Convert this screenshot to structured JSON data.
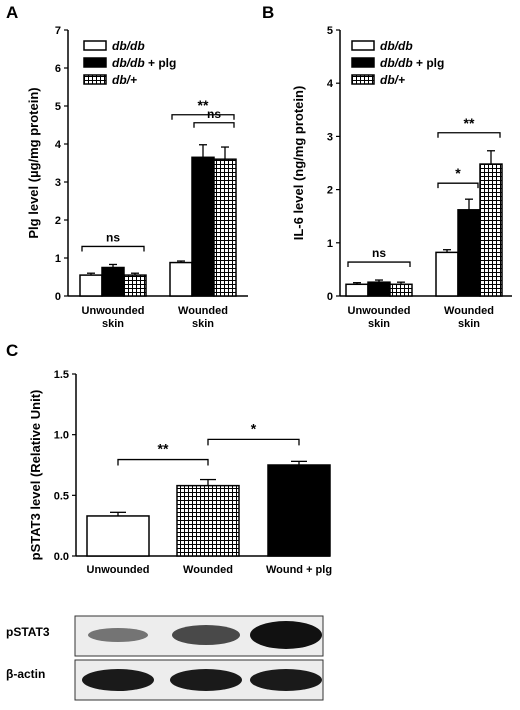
{
  "panels": {
    "a": "A",
    "b": "B",
    "c": "C"
  },
  "colors": {
    "dbdb": "#ffffff",
    "dbdb_plg": "#000000",
    "dbplus": "grid-pattern"
  },
  "blot": {
    "pstat3_label": "pSTAT3",
    "actin_label": "β-actin"
  },
  "chart_data": [
    {
      "type": "bar",
      "panel": "A",
      "ylabel": "Plg level (µg/mg protein)",
      "ylim": [
        0,
        7
      ],
      "yticks": [
        "0",
        "1",
        "2",
        "3",
        "4",
        "5",
        "6",
        "7"
      ],
      "categories": [
        "Unwounded skin",
        "Wounded skin"
      ],
      "legend": {
        "position": "top-left",
        "entries": [
          "db/db",
          "db/db + plg",
          "db/+"
        ]
      },
      "series": [
        {
          "name": "db/db",
          "values": [
            0.55,
            0.88
          ],
          "errors": [
            0.05,
            0.04
          ],
          "fill": "white"
        },
        {
          "name": "db/db + plg",
          "values": [
            0.75,
            3.65
          ],
          "errors": [
            0.08,
            0.33
          ],
          "fill": "black"
        },
        {
          "name": "db/+",
          "values": [
            0.55,
            3.6
          ],
          "errors": [
            0.05,
            0.32
          ],
          "fill": "grid"
        }
      ],
      "annotations": [
        {
          "text": "ns",
          "group": 0,
          "from": 0,
          "to": 2
        },
        {
          "text": "**",
          "group": 1,
          "from": 0,
          "to": 2
        },
        {
          "text": "ns",
          "group": 1,
          "from": 1,
          "to": 2
        }
      ]
    },
    {
      "type": "bar",
      "panel": "B",
      "ylabel": "IL-6 level (ng/mg protein)",
      "ylim": [
        0,
        5
      ],
      "yticks": [
        "0",
        "1",
        "2",
        "3",
        "4",
        "5"
      ],
      "categories": [
        "Unwounded skin",
        "Wounded skin"
      ],
      "legend": {
        "position": "top-left",
        "entries": [
          "db/db",
          "db/db + plg",
          "db/+"
        ]
      },
      "series": [
        {
          "name": "db/db",
          "values": [
            0.22,
            0.82
          ],
          "errors": [
            0.03,
            0.05
          ],
          "fill": "white"
        },
        {
          "name": "db/db + plg",
          "values": [
            0.26,
            1.62
          ],
          "errors": [
            0.04,
            0.2
          ],
          "fill": "black"
        },
        {
          "name": "db/+",
          "values": [
            0.22,
            2.48
          ],
          "errors": [
            0.04,
            0.25
          ],
          "fill": "grid"
        }
      ],
      "annotations": [
        {
          "text": "ns",
          "group": 0,
          "from": 0,
          "to": 2
        },
        {
          "text": "*",
          "group": 1,
          "from": 0,
          "to": 1
        },
        {
          "text": "**",
          "group": 1,
          "from": 0,
          "to": 2
        }
      ]
    },
    {
      "type": "bar",
      "panel": "C",
      "ylabel": "pSTAT3 level (Relative Unit)",
      "ylim": [
        0,
        1.5
      ],
      "yticks": [
        "0.0",
        "0.5",
        "1.0",
        "1.5"
      ],
      "categories": [
        "Unwounded",
        "Wounded",
        "Wound + plg"
      ],
      "values": [
        0.33,
        0.58,
        0.75
      ],
      "errors": [
        0.03,
        0.05,
        0.03
      ],
      "fills": [
        "white",
        "grid",
        "black"
      ],
      "annotations": [
        {
          "text": "**",
          "from": 0,
          "to": 1
        },
        {
          "text": "*",
          "from": 1,
          "to": 2
        }
      ]
    }
  ]
}
